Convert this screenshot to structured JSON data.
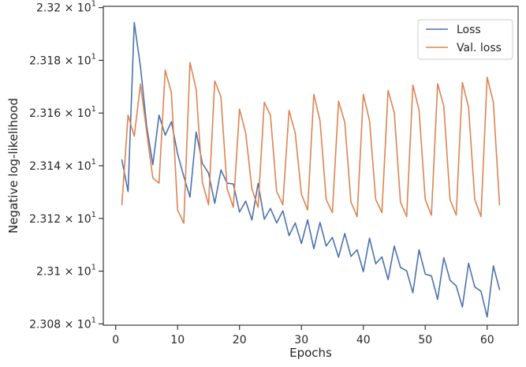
{
  "chart_data": {
    "type": "line",
    "xlabel": "Epochs",
    "ylabel": "Negative log-likelihood",
    "xlim": [
      -2,
      65
    ],
    "ylim": [
      23.0795,
      23.2005
    ],
    "yscale": "log",
    "grid": false,
    "legend_position": "top-right",
    "x_ticks": [
      0,
      10,
      20,
      30,
      40,
      50,
      60
    ],
    "y_ticks": [
      {
        "value": 23.08,
        "mantissa": "2.308",
        "base": "10",
        "exp": "1"
      },
      {
        "value": 23.1,
        "mantissa": "2.31",
        "base": "10",
        "exp": "1"
      },
      {
        "value": 23.12,
        "mantissa": "2.312",
        "base": "10",
        "exp": "1"
      },
      {
        "value": 23.14,
        "mantissa": "2.314",
        "base": "10",
        "exp": "1"
      },
      {
        "value": 23.16,
        "mantissa": "2.316",
        "base": "10",
        "exp": "1"
      },
      {
        "value": 23.18,
        "mantissa": "2.318",
        "base": "10",
        "exp": "1"
      },
      {
        "value": 23.2,
        "mantissa": "2.32",
        "base": "10",
        "exp": "1"
      }
    ],
    "x": [
      1,
      2,
      3,
      4,
      5,
      6,
      7,
      8,
      9,
      10,
      11,
      12,
      13,
      14,
      15,
      16,
      17,
      18,
      19,
      20,
      21,
      22,
      23,
      24,
      25,
      26,
      27,
      28,
      29,
      30,
      31,
      32,
      33,
      34,
      35,
      36,
      37,
      38,
      39,
      40,
      41,
      42,
      43,
      44,
      45,
      46,
      47,
      48,
      49,
      50,
      51,
      52,
      53,
      54,
      55,
      56,
      57,
      58,
      59,
      60,
      61,
      62
    ],
    "series": [
      {
        "name": "Loss",
        "color": "#4c72b0",
        "values": [
          23.1422,
          23.1302,
          23.1944,
          23.1776,
          23.1551,
          23.1404,
          23.1592,
          23.1516,
          23.1567,
          23.1445,
          23.1359,
          23.1281,
          23.1528,
          23.1409,
          23.1372,
          23.1257,
          23.1384,
          23.1334,
          23.1331,
          23.1224,
          23.1266,
          23.1194,
          23.1333,
          23.1197,
          23.1238,
          23.1183,
          23.1229,
          23.1135,
          23.1183,
          23.1105,
          23.1195,
          23.1085,
          23.1185,
          23.1095,
          23.1128,
          23.1053,
          23.1143,
          23.1056,
          23.1081,
          23.0998,
          23.1125,
          23.1028,
          23.1054,
          23.0968,
          23.1095,
          23.1014,
          23.1001,
          23.0918,
          23.1081,
          23.0989,
          23.0982,
          23.0893,
          23.1051,
          23.0966,
          23.0944,
          23.0864,
          23.103,
          23.094,
          23.0924,
          23.0826,
          23.102,
          23.093
        ]
      },
      {
        "name": "Val. loss",
        "color": "#dd8452",
        "values": [
          23.1252,
          23.1592,
          23.1512,
          23.171,
          23.153,
          23.1353,
          23.1334,
          23.1763,
          23.1677,
          23.1232,
          23.1182,
          23.1792,
          23.169,
          23.1337,
          23.1252,
          23.1722,
          23.1661,
          23.1313,
          23.1242,
          23.1615,
          23.1524,
          23.1312,
          23.1242,
          23.1641,
          23.1591,
          23.1302,
          23.1252,
          23.161,
          23.1524,
          23.1292,
          23.1232,
          23.1671,
          23.1571,
          23.1272,
          23.1222,
          23.1645,
          23.1565,
          23.1262,
          23.1207,
          23.1671,
          23.1571,
          23.1272,
          23.1222,
          23.1686,
          23.1601,
          23.1262,
          23.1207,
          23.1706,
          23.1611,
          23.1272,
          23.1212,
          23.1711,
          23.1626,
          23.1272,
          23.1212,
          23.1716,
          23.1621,
          23.1272,
          23.1207,
          23.1736,
          23.1641,
          23.1252
        ]
      }
    ]
  }
}
